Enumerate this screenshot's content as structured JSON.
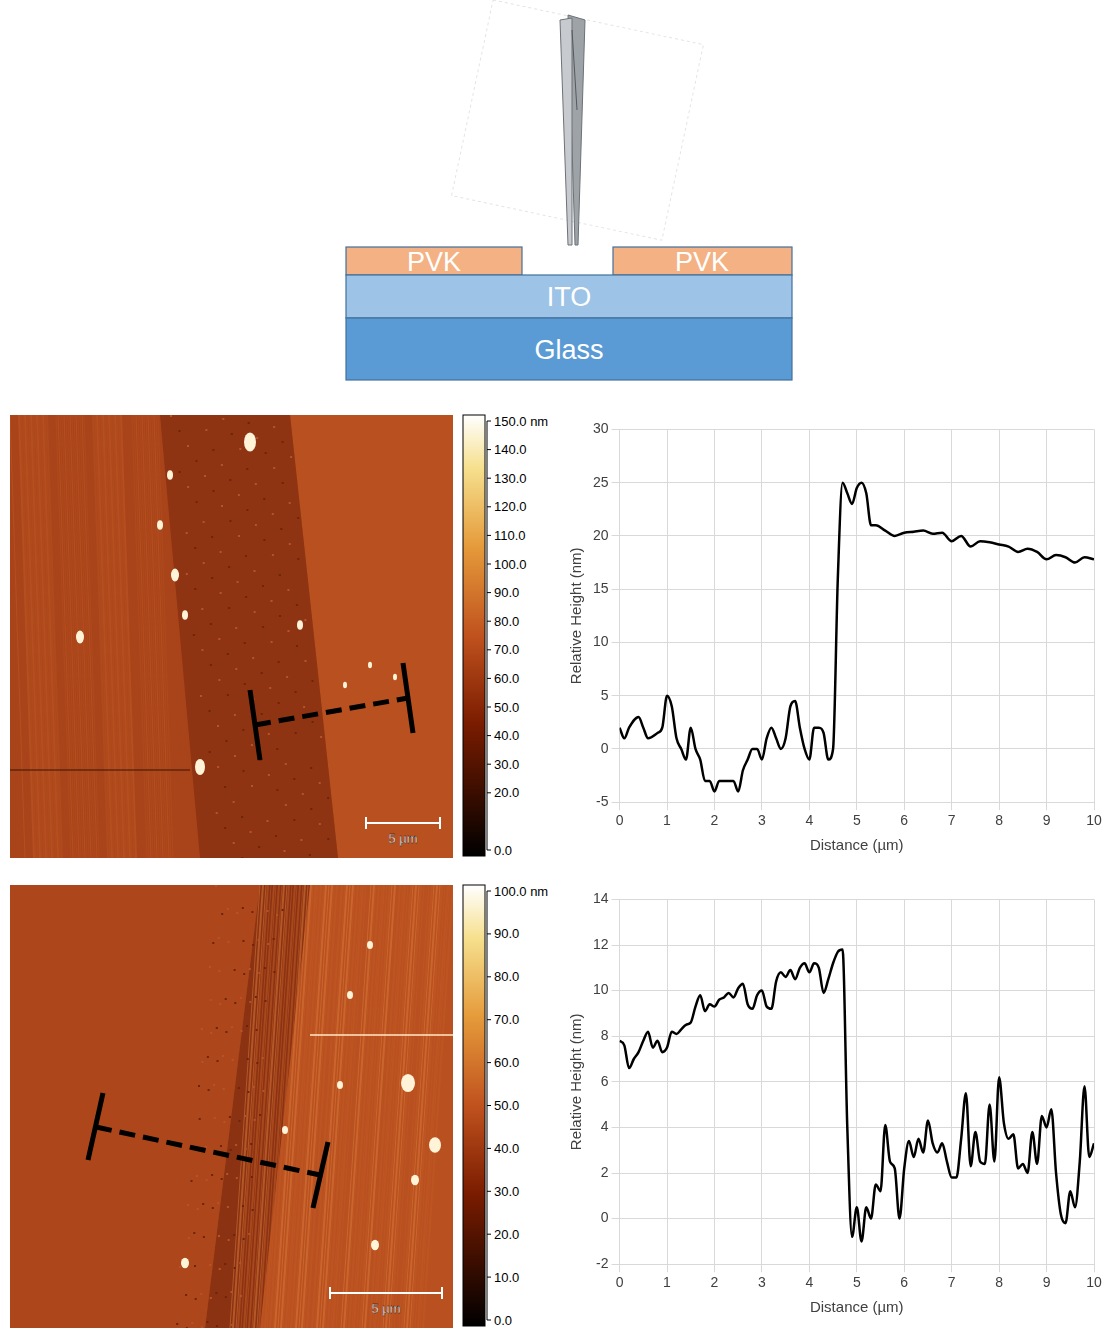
{
  "diagram": {
    "layers": {
      "top_left": "PVK",
      "top_right": "PVK",
      "middle": "ITO",
      "bottom": "Glass"
    }
  },
  "afm_images": [
    {
      "scale_bar": "5 µm",
      "color_bar": {
        "range": [
          0,
          150
        ],
        "ticks": [
          {
            "value": 0,
            "label": "0.0"
          },
          {
            "value": 20,
            "label": "20.0"
          },
          {
            "value": 30,
            "label": "30.0"
          },
          {
            "value": 40,
            "label": "40.0"
          },
          {
            "value": 50,
            "label": "50.0"
          },
          {
            "value": 60,
            "label": "60.0"
          },
          {
            "value": 70,
            "label": "70.0"
          },
          {
            "value": 80,
            "label": "80.0"
          },
          {
            "value": 90,
            "label": "90.0"
          },
          {
            "value": 100,
            "label": "100.0"
          },
          {
            "value": 110,
            "label": "110.0"
          },
          {
            "value": 120,
            "label": "120.0"
          },
          {
            "value": 130,
            "label": "130.0"
          },
          {
            "value": 140,
            "label": "140.0"
          },
          {
            "value": 150,
            "label": "150.0 nm"
          }
        ]
      }
    },
    {
      "scale_bar": "5 µm",
      "color_bar": {
        "range": [
          0,
          100
        ],
        "ticks": [
          {
            "value": 0,
            "label": "0.0"
          },
          {
            "value": 10,
            "label": "10.0"
          },
          {
            "value": 20,
            "label": "20.0"
          },
          {
            "value": 30,
            "label": "30.0"
          },
          {
            "value": 40,
            "label": "40.0"
          },
          {
            "value": 50,
            "label": "50.0"
          },
          {
            "value": 60,
            "label": "60.0"
          },
          {
            "value": 70,
            "label": "70.0"
          },
          {
            "value": 80,
            "label": "80.0"
          },
          {
            "value": 90,
            "label": "90.0"
          },
          {
            "value": 100,
            "label": "100.0 nm"
          }
        ]
      }
    }
  ],
  "chart_data": [
    {
      "type": "line",
      "x_label": "Distance (µm)",
      "y_label": "Relative Height (nm)",
      "color": "#000000",
      "grid": true,
      "xlim": [
        0,
        10
      ],
      "xticks": [
        0,
        1,
        2,
        3,
        4,
        5,
        6,
        7,
        8,
        9,
        10
      ],
      "ylim": [
        -5,
        30
      ],
      "yticks": [
        -5,
        0,
        5,
        10,
        15,
        20,
        25,
        30
      ],
      "x": [
        0,
        0.1,
        0.2,
        0.4,
        0.5,
        0.6,
        0.8,
        0.9,
        1,
        1.1,
        1.2,
        1.3,
        1.4,
        1.5,
        1.6,
        1.7,
        1.8,
        1.9,
        2,
        2.1,
        2.3,
        2.4,
        2.5,
        2.6,
        2.7,
        2.8,
        2.9,
        3,
        3.1,
        3.2,
        3.3,
        3.4,
        3.5,
        3.6,
        3.7,
        3.8,
        3.9,
        4,
        4.1,
        4.2,
        4.3,
        4.4,
        4.5,
        4.6,
        4.7,
        4.8,
        4.9,
        5,
        5.1,
        5.2,
        5.3,
        5.4,
        5.6,
        5.8,
        6,
        6.2,
        6.4,
        6.6,
        6.8,
        7,
        7.2,
        7.4,
        7.6,
        7.8,
        8,
        8.2,
        8.4,
        8.6,
        8.8,
        9,
        9.2,
        9.4,
        9.6,
        9.8,
        10
      ],
      "values": [
        2,
        1,
        2,
        3,
        2,
        1,
        1.5,
        2,
        5,
        4,
        1,
        0,
        -1,
        2,
        0,
        -1,
        -3,
        -3,
        -4,
        -3,
        -3,
        -3,
        -4,
        -2,
        -1,
        0,
        0,
        -1,
        1,
        2,
        1,
        0,
        1,
        4,
        4.5,
        2,
        0,
        -1,
        2,
        2,
        1.5,
        -1,
        0,
        16,
        25,
        24,
        23,
        24.5,
        25,
        24,
        21,
        21,
        20.5,
        20,
        20.3,
        20.4,
        20.5,
        20.2,
        20.3,
        19.5,
        20,
        19,
        19.5,
        19.4,
        19.2,
        19,
        18.5,
        18.8,
        18.5,
        17.8,
        18.2,
        18,
        17.5,
        18,
        17.8
      ]
    },
    {
      "type": "line",
      "x_label": "Distance (µm)",
      "y_label": "Relative Height (nm)",
      "color": "#000000",
      "grid": true,
      "xlim": [
        0,
        10
      ],
      "xticks": [
        0,
        1,
        2,
        3,
        4,
        5,
        6,
        7,
        8,
        9,
        10
      ],
      "ylim": [
        -2,
        14
      ],
      "yticks": [
        -2,
        0,
        2,
        4,
        6,
        8,
        10,
        12,
        14
      ],
      "x": [
        0,
        0.1,
        0.2,
        0.3,
        0.4,
        0.5,
        0.6,
        0.7,
        0.8,
        0.9,
        1,
        1.1,
        1.2,
        1.3,
        1.4,
        1.5,
        1.6,
        1.7,
        1.8,
        1.9,
        2,
        2.1,
        2.2,
        2.3,
        2.4,
        2.5,
        2.6,
        2.7,
        2.8,
        2.9,
        3,
        3.1,
        3.2,
        3.3,
        3.4,
        3.5,
        3.6,
        3.7,
        3.8,
        3.9,
        4,
        4.1,
        4.2,
        4.3,
        4.4,
        4.5,
        4.6,
        4.7,
        4.8,
        4.9,
        5,
        5.1,
        5.2,
        5.3,
        5.4,
        5.5,
        5.6,
        5.7,
        5.8,
        5.9,
        6,
        6.1,
        6.2,
        6.3,
        6.4,
        6.5,
        6.6,
        6.7,
        6.8,
        6.9,
        7,
        7.1,
        7.2,
        7.3,
        7.4,
        7.5,
        7.6,
        7.7,
        7.8,
        7.9,
        8,
        8.1,
        8.2,
        8.3,
        8.4,
        8.5,
        8.6,
        8.7,
        8.8,
        8.9,
        9,
        9.1,
        9.2,
        9.3,
        9.4,
        9.5,
        9.6,
        9.7,
        9.8,
        9.9,
        10
      ],
      "values": [
        7.8,
        7.6,
        6.6,
        7,
        7.3,
        7.8,
        8.2,
        7.5,
        7.8,
        7.3,
        7.5,
        8.2,
        8.1,
        8.3,
        8.5,
        8.6,
        9.3,
        9.8,
        9.1,
        9.4,
        9.3,
        9.6,
        9.7,
        9.9,
        9.7,
        10.1,
        10.3,
        9.4,
        9.2,
        9.8,
        10,
        9.3,
        9.2,
        10.4,
        10.8,
        10.6,
        10.9,
        10.5,
        11,
        11.2,
        10.8,
        11.2,
        11,
        9.9,
        10.5,
        11.2,
        11.7,
        11.8,
        4,
        -0.8,
        0.5,
        -1,
        0.5,
        0,
        1.5,
        1.2,
        4.1,
        2.5,
        2.2,
        0,
        2.2,
        3.4,
        2.7,
        3.5,
        2.9,
        4.3,
        3.3,
        2.9,
        3.3,
        2.5,
        1.8,
        1.8,
        3.5,
        5.5,
        2.3,
        3.8,
        2.5,
        2.4,
        5,
        2.5,
        6.2,
        4.2,
        3.5,
        3.7,
        2.2,
        2.4,
        2,
        3.8,
        2.4,
        4.5,
        4,
        4.8,
        2,
        0.2,
        -0.2,
        1.2,
        0.5,
        2.5,
        5.8,
        2.7,
        3.3
      ]
    }
  ]
}
